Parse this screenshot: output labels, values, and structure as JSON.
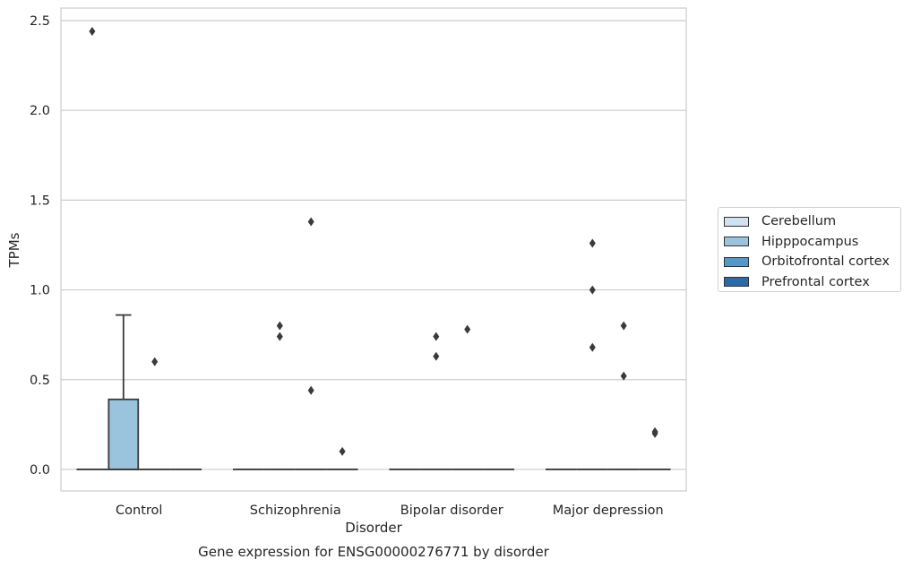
{
  "chart_data": {
    "type": "box",
    "title": "Gene expression for ENSG00000276771 by disorder",
    "xlabel": "Disorder",
    "ylabel": "TPMs",
    "categories": [
      "Control",
      "Schizophrenia",
      "Bipolar disorder",
      "Major depression"
    ],
    "yticks": [
      "0.0",
      "0.5",
      "1.0",
      "1.5",
      "2.0",
      "2.5"
    ],
    "ylim": [
      -0.12,
      2.57
    ],
    "grid": true,
    "legend_position": "right",
    "series": [
      {
        "name": "Cerebellum",
        "color": "#d0e1f2",
        "boxes": [
          {
            "q1": 0,
            "median": 0,
            "q3": 0,
            "whislo": 0,
            "whishi": 0,
            "fliers": [
              2.44
            ]
          },
          {
            "q1": 0,
            "median": 0,
            "q3": 0,
            "whislo": 0,
            "whishi": 0,
            "fliers": []
          },
          {
            "q1": 0,
            "median": 0,
            "q3": 0,
            "whislo": 0,
            "whishi": 0,
            "fliers": []
          },
          {
            "q1": 0,
            "median": 0,
            "q3": 0,
            "whislo": 0,
            "whishi": 0,
            "fliers": []
          }
        ]
      },
      {
        "name": "Hipppocampus",
        "color": "#9ac3de",
        "boxes": [
          {
            "q1": 0,
            "median": 0,
            "q3": 0.39,
            "whislo": 0,
            "whishi": 0.86,
            "fliers": []
          },
          {
            "q1": 0,
            "median": 0,
            "q3": 0,
            "whislo": 0,
            "whishi": 0,
            "fliers": [
              0.8,
              0.74
            ]
          },
          {
            "q1": 0,
            "median": 0,
            "q3": 0,
            "whislo": 0,
            "whishi": 0,
            "fliers": [
              0.74,
              0.63
            ]
          },
          {
            "q1": 0,
            "median": 0,
            "q3": 0,
            "whislo": 0,
            "whishi": 0,
            "fliers": [
              1.26,
              1.0,
              0.68
            ]
          }
        ]
      },
      {
        "name": "Orbitofrontal cortex",
        "color": "#5597c6",
        "boxes": [
          {
            "q1": 0,
            "median": 0,
            "q3": 0,
            "whislo": 0,
            "whishi": 0,
            "fliers": [
              0.6
            ]
          },
          {
            "q1": 0,
            "median": 0,
            "q3": 0,
            "whislo": 0,
            "whishi": 0,
            "fliers": [
              1.38,
              0.44
            ]
          },
          {
            "q1": 0,
            "median": 0,
            "q3": 0,
            "whislo": 0,
            "whishi": 0,
            "fliers": [
              0.78
            ]
          },
          {
            "q1": 0,
            "median": 0,
            "q3": 0,
            "whislo": 0,
            "whishi": 0,
            "fliers": [
              0.8,
              0.52
            ]
          }
        ]
      },
      {
        "name": "Prefrontal cortex",
        "color": "#2b6aa8",
        "boxes": [
          {
            "q1": 0,
            "median": 0,
            "q3": 0,
            "whislo": 0,
            "whishi": 0,
            "fliers": []
          },
          {
            "q1": 0,
            "median": 0,
            "q3": 0,
            "whislo": 0,
            "whishi": 0,
            "fliers": [
              0.1
            ]
          },
          {
            "q1": 0,
            "median": 0,
            "q3": 0,
            "whislo": 0,
            "whishi": 0,
            "fliers": []
          },
          {
            "q1": 0,
            "median": 0,
            "q3": 0,
            "whislo": 0,
            "whishi": 0,
            "fliers": [
              0.21,
              0.2
            ]
          }
        ]
      }
    ]
  }
}
